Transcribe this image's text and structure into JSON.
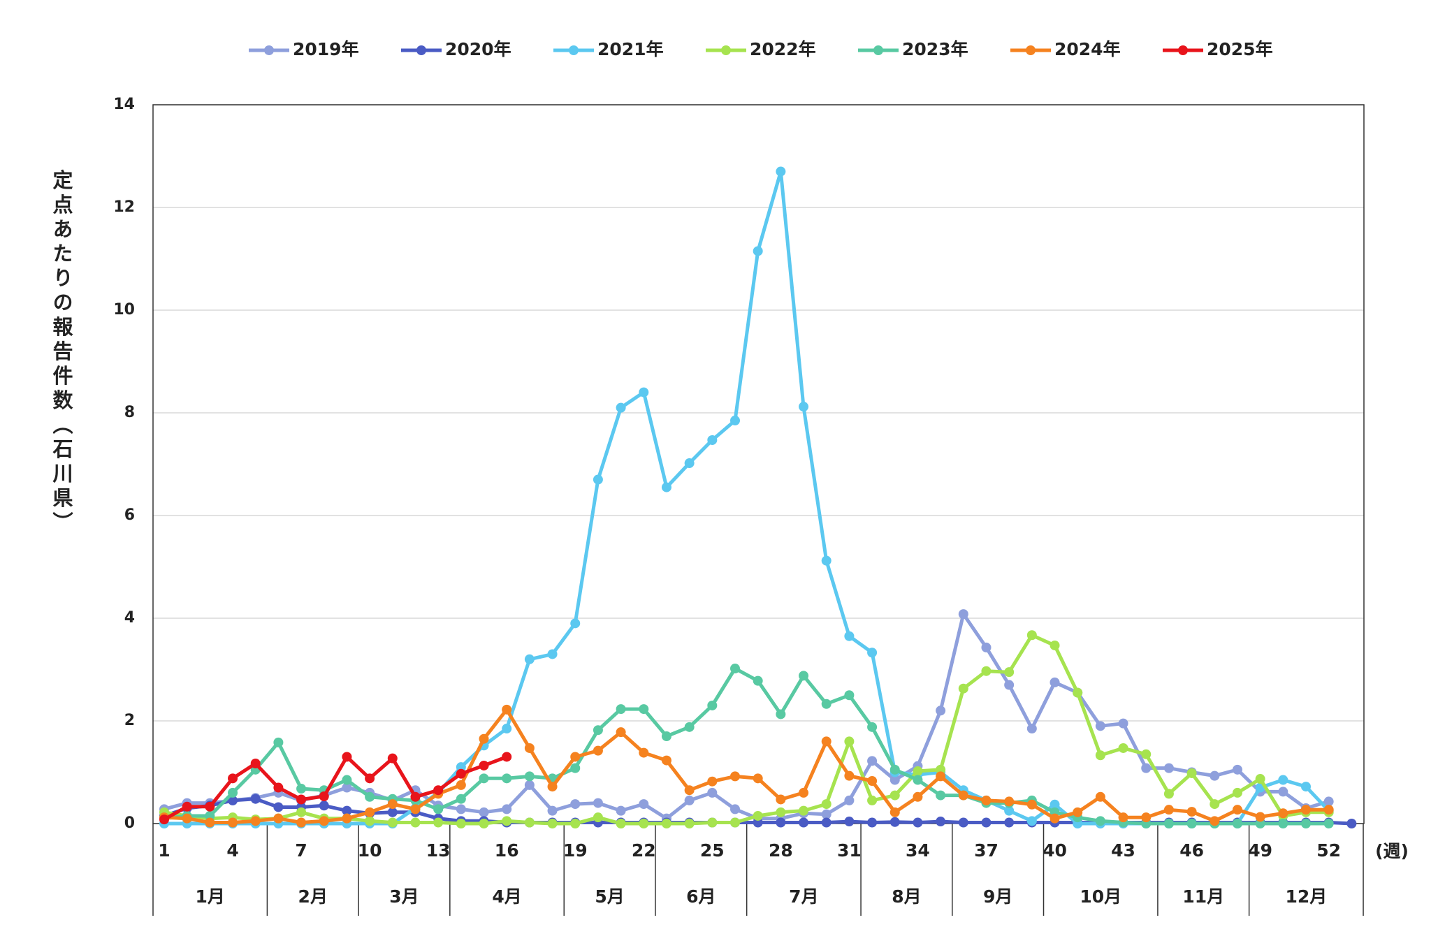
{
  "chart_data": {
    "type": "line",
    "y_label": "定点あたりの報告件数（石川県）",
    "x_label": "(週)",
    "categories": [
      1,
      null,
      null,
      4,
      null,
      null,
      7,
      null,
      null,
      10,
      null,
      null,
      13,
      null,
      null,
      16,
      null,
      null,
      19,
      null,
      null,
      22,
      null,
      null,
      25,
      null,
      null,
      28,
      null,
      null,
      31,
      null,
      null,
      34,
      null,
      null,
      37,
      null,
      null,
      40,
      null,
      null,
      43,
      null,
      null,
      46,
      null,
      null,
      49,
      null,
      null,
      52,
      null
    ],
    "months": [
      {
        "label": "1月",
        "span": 5
      },
      {
        "label": "2月",
        "span": 4
      },
      {
        "label": "3月",
        "span": 4
      },
      {
        "label": "4月",
        "span": 5
      },
      {
        "label": "5月",
        "span": 4
      },
      {
        "label": "6月",
        "span": 4
      },
      {
        "label": "7月",
        "span": 5
      },
      {
        "label": "8月",
        "span": 4
      },
      {
        "label": "9月",
        "span": 4
      },
      {
        "label": "10月",
        "span": 5
      },
      {
        "label": "11月",
        "span": 4
      },
      {
        "label": "12月",
        "span": 5
      }
    ],
    "ylim": [
      0,
      14
    ],
    "yticks": [
      0,
      2,
      4,
      6,
      8,
      10,
      12,
      14
    ],
    "grid": true,
    "legend": "top",
    "series": [
      {
        "name": "2019年",
        "color": "#8e9fdc",
        "values": [
          0.28,
          0.4,
          0.4,
          0.45,
          0.5,
          0.6,
          0.45,
          0.55,
          0.7,
          0.6,
          0.45,
          0.65,
          0.35,
          0.28,
          0.22,
          0.28,
          0.75,
          0.25,
          0.38,
          0.4,
          0.25,
          0.38,
          0.1,
          0.45,
          0.6,
          0.28,
          0.1,
          0.1,
          0.2,
          0.18,
          0.45,
          1.22,
          0.85,
          1.12,
          2.2,
          4.08,
          3.43,
          2.7,
          1.85,
          2.75,
          2.55,
          1.9,
          1.95,
          1.08,
          1.08,
          1.0,
          0.93,
          1.05,
          0.62,
          0.62,
          0.3,
          0.43,
          null
        ]
      },
      {
        "name": "2020年",
        "color": "#4a5bc4",
        "values": [
          0.15,
          0.3,
          0.35,
          0.45,
          0.48,
          0.32,
          0.32,
          0.35,
          0.25,
          0.2,
          0.22,
          0.22,
          0.1,
          0.05,
          0.05,
          0.02,
          0.02,
          0.02,
          0.02,
          0.02,
          0.02,
          0.02,
          0.02,
          0.02,
          0.02,
          0.02,
          0.02,
          0.02,
          0.02,
          0.02,
          0.04,
          0.02,
          0.03,
          0.02,
          0.04,
          0.02,
          0.02,
          0.02,
          0.02,
          0.02,
          0.02,
          0.02,
          0.02,
          0.02,
          0.02,
          0.02,
          0.02,
          0.02,
          0.02,
          0.02,
          0.02,
          0.02,
          0.0
        ]
      },
      {
        "name": "2021年",
        "color": "#5bc8f0",
        "values": [
          0,
          0,
          0,
          0,
          0,
          0,
          0,
          0,
          0,
          0,
          0,
          0.3,
          0.6,
          1.1,
          1.52,
          1.85,
          3.2,
          3.3,
          3.9,
          6.7,
          8.1,
          8.4,
          6.55,
          7.02,
          7.47,
          7.85,
          11.15,
          12.7,
          8.12,
          5.12,
          3.65,
          3.33,
          1.0,
          0.95,
          1.0,
          0.65,
          0.45,
          0.25,
          0.05,
          0.37,
          0,
          0,
          0,
          0,
          0,
          0,
          0,
          0,
          0.7,
          0.85,
          0.72,
          0.25,
          null
        ]
      },
      {
        "name": "2022年",
        "color": "#a6e34f",
        "values": [
          0.22,
          0.15,
          0.1,
          0.12,
          0.08,
          0.1,
          0.22,
          0.1,
          0.1,
          0.05,
          0.02,
          0.02,
          0.02,
          0,
          0,
          0.05,
          0.02,
          0,
          0,
          0.12,
          0,
          0,
          0,
          0,
          0.02,
          0.02,
          0.15,
          0.22,
          0.25,
          0.38,
          1.6,
          0.45,
          0.55,
          1.02,
          1.05,
          2.63,
          2.97,
          2.95,
          3.67,
          3.47,
          2.55,
          1.33,
          1.47,
          1.35,
          0.58,
          0.98,
          0.38,
          0.6,
          0.87,
          0.15,
          0.22,
          0.22,
          null
        ]
      },
      {
        "name": "2023年",
        "color": "#58c9a2",
        "values": [
          0.1,
          0.15,
          0.15,
          0.6,
          1.05,
          1.58,
          0.68,
          0.65,
          0.85,
          0.52,
          0.48,
          0.45,
          0.28,
          0.48,
          0.88,
          0.88,
          0.92,
          0.88,
          1.08,
          1.82,
          2.23,
          2.23,
          1.7,
          1.88,
          2.3,
          3.02,
          2.78,
          2.13,
          2.88,
          2.33,
          2.5,
          1.88,
          1.05,
          0.85,
          0.55,
          0.55,
          0.4,
          0.4,
          0.45,
          0.22,
          0.12,
          0.05,
          0.02,
          0,
          0,
          0,
          0,
          0,
          0,
          0,
          0,
          0,
          null
        ]
      },
      {
        "name": "2024年",
        "color": "#f5821f",
        "values": [
          0.12,
          0.1,
          0.02,
          0.02,
          0.05,
          0.1,
          0.02,
          0.05,
          0.1,
          0.22,
          0.38,
          0.28,
          0.58,
          0.75,
          1.65,
          2.22,
          1.47,
          0.72,
          1.3,
          1.42,
          1.78,
          1.38,
          1.23,
          0.65,
          0.82,
          0.92,
          0.88,
          0.47,
          0.6,
          1.6,
          0.93,
          0.83,
          0.22,
          0.52,
          0.92,
          0.55,
          0.45,
          0.43,
          0.37,
          0.1,
          0.22,
          0.52,
          0.12,
          0.12,
          0.27,
          0.23,
          0.05,
          0.27,
          0.13,
          0.2,
          0.27,
          0.27,
          null
        ]
      },
      {
        "name": "2025年",
        "color": "#e8141b",
        "values": [
          0.08,
          0.33,
          0.33,
          0.88,
          1.17,
          0.7,
          0.47,
          0.53,
          1.3,
          0.88,
          1.27,
          0.52,
          0.65,
          0.97,
          1.13,
          1.3,
          null,
          null,
          null,
          null,
          null,
          null,
          null,
          null,
          null,
          null,
          null,
          null,
          null,
          null,
          null,
          null,
          null,
          null,
          null,
          null,
          null,
          null,
          null,
          null,
          null,
          null,
          null,
          null,
          null,
          null,
          null,
          null,
          null,
          null,
          null,
          null,
          null
        ]
      }
    ]
  }
}
